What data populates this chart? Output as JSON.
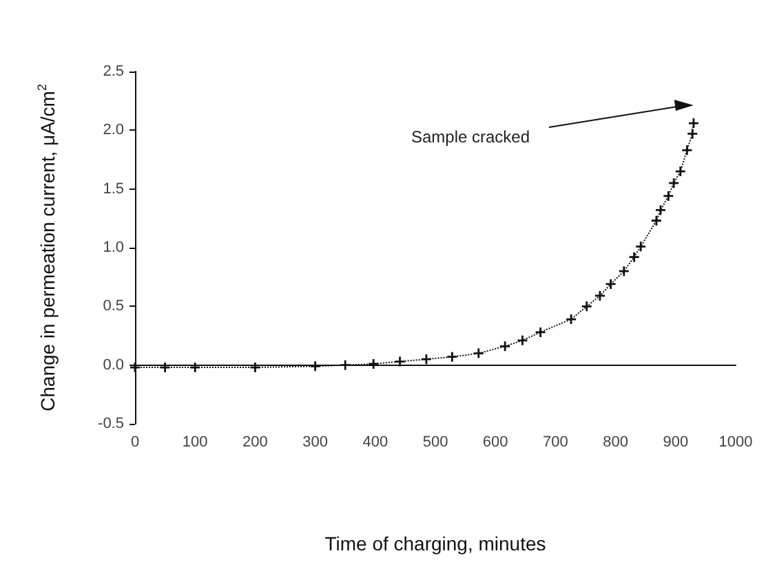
{
  "chart_data": {
    "type": "line",
    "xlabel": "Time of charging, minutes",
    "ylabel": "Change in permeation current, μA/cm$^{2}$",
    "x": [
      0,
      50,
      100,
      200,
      300,
      350,
      397,
      441,
      485,
      528,
      572,
      616,
      645,
      675,
      726,
      752,
      774,
      792,
      814,
      831,
      842,
      868,
      875,
      888,
      897,
      908,
      919,
      928,
      930
    ],
    "series": [
      {
        "color": "#111111",
        "values": [
          -0.02,
          -0.02,
          -0.02,
          -0.02,
          -0.01,
          0.0,
          0.01,
          0.03,
          0.05,
          0.07,
          0.1,
          0.16,
          0.21,
          0.28,
          0.39,
          0.5,
          0.59,
          0.69,
          0.8,
          0.92,
          1.01,
          1.23,
          1.32,
          1.44,
          1.55,
          1.65,
          1.83,
          1.97,
          2.06
        ]
      }
    ],
    "xlim": [
      0,
      1000
    ],
    "xticks": [
      0,
      100,
      200,
      300,
      400,
      500,
      600,
      700,
      800,
      900,
      1000
    ],
    "ylim": [
      -0.5,
      2.5
    ],
    "yticks": [
      {
        "value": -0.5,
        "label": "-0.5"
      },
      {
        "value": 0,
        "label": "0.0"
      },
      {
        "value": 0.5,
        "label": "0.5"
      },
      {
        "value": 1,
        "label": "1.0"
      },
      {
        "value": 1.5,
        "label": "1.5"
      },
      {
        "value": 2,
        "label": "2.0"
      },
      {
        "value": 2.5,
        "label": "2.5"
      }
    ],
    "annotations": [
      "Sample cracked"
    ],
    "marker": "cross",
    "line_style": "dotted"
  }
}
